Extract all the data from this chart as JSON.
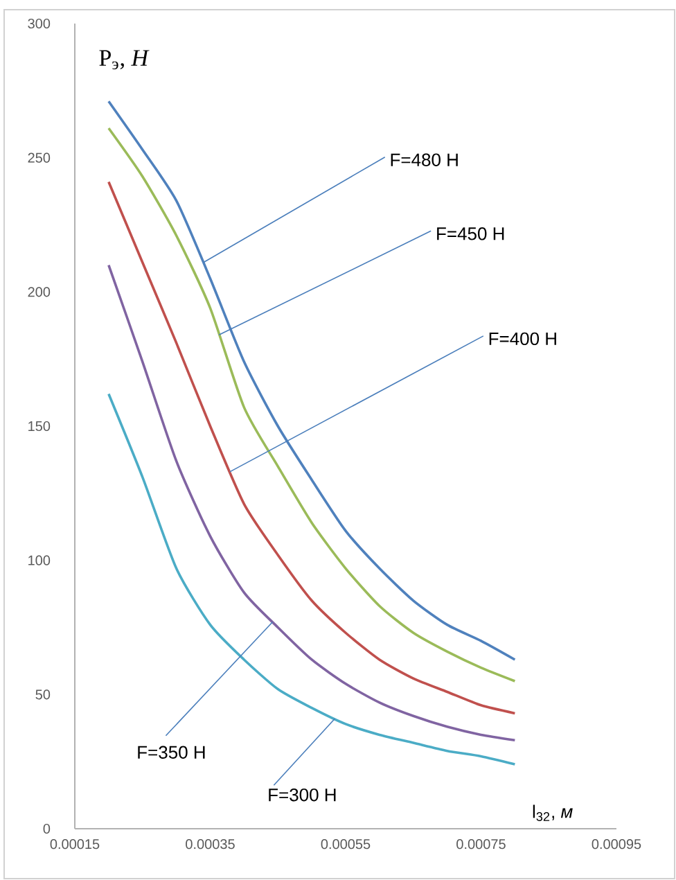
{
  "chart_data": {
    "type": "line",
    "xlabel": "l$_{32}$, *м*",
    "ylabel": "Р$_{э}$, *H*",
    "x": [
      0.0002,
      0.00025,
      0.0003,
      0.00035,
      0.0004,
      0.00045,
      0.0005,
      0.00055,
      0.0006,
      0.00065,
      0.0007,
      0.00075,
      0.0008
    ],
    "series": [
      {
        "color": "#4f81bd",
        "values": [
          271,
          253,
          234,
          205,
          174,
          150,
          130,
          111,
          97,
          85,
          76,
          70,
          63
        ]
      },
      {
        "color": "#9bbb59",
        "values": [
          261,
          243,
          221,
          194,
          157,
          135,
          114,
          97,
          83,
          73,
          66,
          60,
          55
        ]
      },
      {
        "color": "#c0504d",
        "values": [
          241,
          211,
          181,
          150,
          121,
          102,
          85,
          73,
          63,
          56,
          51,
          46,
          43
        ]
      },
      {
        "color": "#8064a2",
        "values": [
          210,
          174,
          137,
          109,
          88,
          75,
          63,
          54,
          47,
          42,
          38,
          35,
          33
        ]
      },
      {
        "color": "#4bacc6",
        "values": [
          162,
          131,
          97,
          76,
          63,
          52,
          45,
          39,
          35,
          32,
          29,
          27,
          24
        ]
      }
    ],
    "annotations": [
      {
        "text": "F=480 H",
        "x": 0.00034,
        "y": 211
      },
      {
        "text": "F=450 H",
        "x": 0.000363,
        "y": 184
      },
      {
        "text": "F=400 H",
        "x": 0.000379,
        "y": 133
      },
      {
        "text": "F=350 H",
        "x": 0.000442,
        "y": 77
      },
      {
        "text": "F=300 H",
        "x": 0.000534,
        "y": 41
      }
    ],
    "xlim": [
      0.00015,
      0.00095
    ],
    "xticks": [
      0.00015,
      0.00035,
      0.00055,
      0.00075,
      0.00095
    ],
    "ylim": [
      0,
      300
    ],
    "yticks": [
      0,
      50,
      100,
      150,
      200,
      250,
      300
    ],
    "grid": false,
    "legend": false,
    "marker": "none",
    "line_style": "solid"
  }
}
